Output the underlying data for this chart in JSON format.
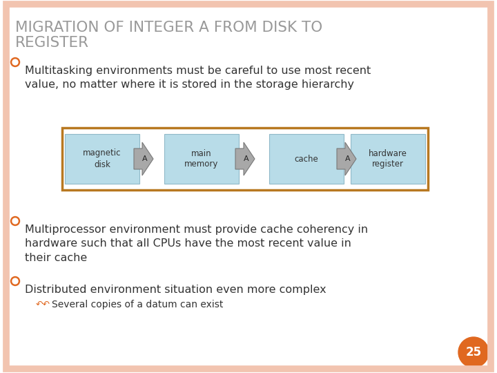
{
  "title_line1": "MIGRATION OF INTEGER A FROM DISK TO",
  "title_line2": "REGISTER",
  "title_color": "#999999",
  "bg_color": "#FFFFFF",
  "border_color": "#F2C4B0",
  "slide_number": "25",
  "slide_number_bg": "#E06820",
  "bullet_color": "#E06820",
  "bullet_ring_color": "#E06820",
  "bullet1": "Multitasking environments must be careful to use most recent\nvalue, no matter where it is stored in the storage hierarchy",
  "bullet2": "Multiprocessor environment must provide cache coherency in\nhardware such that all CPUs have the most recent value in\ntheir cache",
  "bullet3": "Distributed environment situation even more complex",
  "sub_bullet": "Several copies of a datum can exist",
  "diagram_border_color": "#B87820",
  "box_fill": "#B8DCE8",
  "box_edge": "#90B8C8",
  "arrow_fill": "#A8A8A8",
  "arrow_edge": "#787878",
  "text_color": "#333333",
  "font_family": "DejaVu Sans"
}
